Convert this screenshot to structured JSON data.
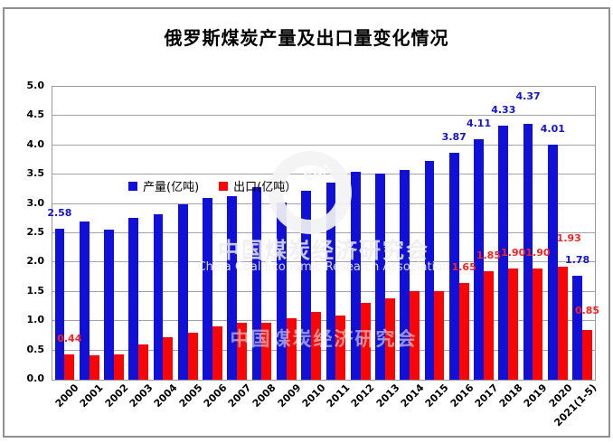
{
  "title": "俄罗斯煤炭产量及出口量变化情况",
  "legend": [
    {
      "label": "产量(亿吨)",
      "color": "#1010d8"
    },
    {
      "label": "出口(亿吨）",
      "color": "#fb0404"
    }
  ],
  "watermark": {
    "logo_text": "ERA",
    "line_cn": "中国煤炭经济研究会",
    "line_en": "China Coal Economic Research Association",
    "band_cn": "中国煤炭经济研究会"
  },
  "chart_data": {
    "type": "bar",
    "title": "俄罗斯煤炭产量及出口量变化情况",
    "xlabel": "",
    "ylabel": "",
    "ylim": [
      0,
      5
    ],
    "ytick_step": 0.5,
    "grid": true,
    "legend_position": "top-left-inside",
    "yticks": [
      "5.0",
      "4.5",
      "4.0",
      "3.5",
      "3.0",
      "2.5",
      "2.0",
      "1.5",
      "1.0",
      "0.5",
      "0.0"
    ],
    "categories": [
      "2000",
      "2001",
      "2002",
      "2003",
      "2004",
      "2005",
      "2006",
      "2007",
      "2008",
      "2009",
      "2010",
      "2011",
      "2012",
      "2013",
      "2014",
      "2015",
      "2016",
      "2017",
      "2018",
      "2019",
      "2020",
      "2021(1-5)"
    ],
    "series": [
      {
        "key": "production",
        "name": "产量(亿吨)",
        "color": "#1010d8",
        "label_color": "#1414cc",
        "values": [
          2.58,
          2.7,
          2.56,
          2.76,
          2.83,
          3.0,
          3.1,
          3.14,
          3.29,
          3.02,
          3.22,
          3.36,
          3.55,
          3.52,
          3.58,
          3.73,
          3.87,
          4.11,
          4.33,
          4.37,
          4.01,
          1.78
        ],
        "labels": {
          "0": "2.58",
          "16": "3.87",
          "17": "4.11",
          "18": "4.33",
          "19": "4.37",
          "20": "4.01",
          "21": "1.78"
        }
      },
      {
        "key": "export",
        "name": "出口(亿吨）",
        "color": "#fb0404",
        "label_color": "#fb2222",
        "values": [
          0.44,
          0.42,
          0.43,
          0.6,
          0.72,
          0.8,
          0.91,
          0.98,
          0.98,
          1.05,
          1.16,
          1.1,
          1.31,
          1.39,
          1.52,
          1.52,
          1.65,
          1.85,
          1.9,
          1.9,
          1.93,
          0.85
        ],
        "labels": {
          "0": "0.44",
          "16": "1.65",
          "17": "1.85",
          "18": "1.90",
          "19": "1.90",
          "20": "1.93",
          "21": "0.85"
        }
      }
    ],
    "label_offsets": {
      "production": {
        "19": {
          "raise": 13
        }
      },
      "export": {
        "20": {
          "raise": 14,
          "dx": 7
        },
        "21": {
          "raise": 4
        }
      }
    }
  }
}
